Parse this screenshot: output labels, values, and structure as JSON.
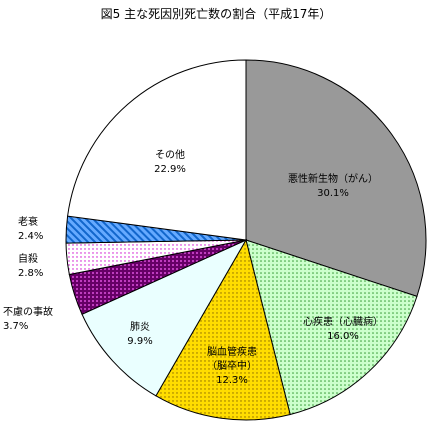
{
  "chart_data": {
    "type": "pie",
    "title": "図5 主な死因別死亡数の割合（平成17年）",
    "start_angle_deg": 0,
    "direction": "clockwise",
    "slices": [
      {
        "label": [
          "悪性新生物（がん）"
        ],
        "pct_label": "30.1%",
        "value": 30.1,
        "fill": "#999999",
        "pattern": "solid"
      },
      {
        "label": [
          "心疾患（心臓病）"
        ],
        "pct_label": "16.0%",
        "value": 16.0,
        "fill": "#ccffcc",
        "pattern": "dots-green"
      },
      {
        "label": [
          "脳血管疾患",
          "（脳卒中）"
        ],
        "pct_label": "12.3%",
        "value": 12.3,
        "fill": "#ffdd00",
        "pattern": "dots-dark"
      },
      {
        "label": [
          "肺炎"
        ],
        "pct_label": "9.9%",
        "value": 9.9,
        "fill": "#eaffff",
        "pattern": "solid"
      },
      {
        "label": [
          "不慮の事故"
        ],
        "pct_label": "3.7%",
        "value": 3.7,
        "fill": "#990099",
        "pattern": "dots-light"
      },
      {
        "label": [
          "自殺"
        ],
        "pct_label": "2.8%",
        "value": 2.8,
        "fill": "#ffffff",
        "pattern": "dots-magenta"
      },
      {
        "label": [
          "老衰"
        ],
        "pct_label": "2.4%",
        "value": 2.4,
        "fill": "#4499ff",
        "pattern": "stripes"
      },
      {
        "label": [
          "その他"
        ],
        "pct_label": "22.9%",
        "value": 22.9,
        "fill": "#ffffff",
        "pattern": "solid"
      }
    ]
  }
}
